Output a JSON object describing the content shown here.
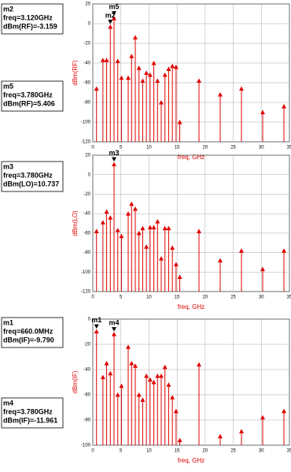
{
  "chart_data": [
    {
      "type": "stem",
      "xlabel": "freq, GHz",
      "ylabel": "dBm(RF)",
      "color": "#e00000",
      "grid": true,
      "x": [
        0.66,
        1.8,
        2.46,
        3.12,
        3.78,
        4.44,
        5.1,
        6.3,
        6.9,
        7.56,
        8.22,
        8.88,
        9.54,
        10.2,
        10.86,
        11.52,
        12.18,
        12.84,
        13.5,
        14.16,
        14.82,
        15.48,
        18.9,
        22.68,
        26.46,
        30.24,
        34.02
      ],
      "values": [
        -66,
        -37,
        -37,
        -3.159,
        5.406,
        -38,
        -55,
        -55,
        -33,
        -14,
        -45,
        -58,
        -50,
        -52,
        -40,
        -58,
        -80,
        -52,
        -46,
        -43,
        -44,
        -100,
        -58,
        -72,
        -66,
        -90,
        -84
      ],
      "xlim": [
        0,
        35
      ],
      "ylim": [
        -120,
        20
      ],
      "xticks": [
        0,
        5,
        10,
        15,
        20,
        25,
        30,
        35
      ],
      "yticks": [
        -120,
        -100,
        -80,
        -60,
        -40,
        -20,
        0,
        20
      ],
      "markers": [
        {
          "name": "m2",
          "freq": "freq=3.120GHz",
          "dbm": "dBm(RF)=-3.159",
          "x": 3.12,
          "y": -3.159
        },
        {
          "name": "m5",
          "freq": "freq=3.780GHz",
          "dbm": "dBm(RF)=5.406",
          "x": 3.78,
          "y": 5.406
        }
      ]
    },
    {
      "type": "stem",
      "xlabel": "freq, GHz",
      "ylabel": "dBm(LO)",
      "color": "#e00000",
      "grid": true,
      "x": [
        0.66,
        1.8,
        2.46,
        3.12,
        3.78,
        4.44,
        5.1,
        6.3,
        6.9,
        7.56,
        8.22,
        8.88,
        9.54,
        10.2,
        10.86,
        11.52,
        12.18,
        12.84,
        13.5,
        14.16,
        14.82,
        15.48,
        18.9,
        22.68,
        26.46,
        30.24,
        34.02
      ],
      "values": [
        -58,
        -49,
        -38,
        -44,
        10.737,
        -57,
        -63,
        -40,
        -30,
        -35,
        -60,
        -55,
        -74,
        -54,
        -54,
        -48,
        -86,
        -55,
        -55,
        -75,
        -92,
        -105,
        -58,
        -88,
        -78,
        -97,
        -78
      ],
      "xlim": [
        0,
        35
      ],
      "ylim": [
        -120,
        20
      ],
      "xticks": [
        0,
        5,
        10,
        15,
        20,
        25,
        30,
        35
      ],
      "yticks": [
        -120,
        -100,
        -80,
        -60,
        -40,
        -20,
        0,
        20
      ],
      "markers": [
        {
          "name": "m3",
          "freq": "freq=3.780GHz",
          "dbm": "dBm(LO)=10.737",
          "x": 3.78,
          "y": 10.737
        }
      ]
    },
    {
      "type": "stem",
      "xlabel": "freq, GHz",
      "ylabel": "dBm(IF)",
      "color": "#e00000",
      "grid": true,
      "x": [
        0.66,
        1.8,
        2.46,
        3.12,
        3.78,
        4.44,
        5.1,
        6.3,
        6.9,
        7.56,
        8.22,
        8.88,
        9.54,
        10.2,
        10.86,
        11.52,
        12.18,
        12.84,
        13.5,
        14.16,
        14.82,
        15.48,
        18.9,
        22.68,
        26.46,
        30.24,
        34.02
      ],
      "values": [
        -9.79,
        -46,
        -35,
        -43,
        -11.961,
        -60,
        -53,
        -22,
        -35,
        -37,
        -60,
        -64,
        -45,
        -48,
        -50,
        -45,
        -45,
        -38,
        -52,
        -62,
        -73,
        -96,
        -36,
        -93,
        -89,
        -78,
        -73
      ],
      "xlim": [
        0,
        35
      ],
      "ylim": [
        -100,
        0
      ],
      "xticks": [
        0,
        5,
        10,
        15,
        20,
        25,
        30,
        35
      ],
      "yticks": [
        -100,
        -80,
        -60,
        -40,
        -20,
        0
      ],
      "markers": [
        {
          "name": "m1",
          "freq": "freq=660.0MHz",
          "dbm": "dBm(IF)=-9.790",
          "x": 0.66,
          "y": -9.79
        },
        {
          "name": "m4",
          "freq": "freq=3.780GHz",
          "dbm": "dBm(IF)=-11.961",
          "x": 3.78,
          "y": -11.961
        }
      ]
    }
  ]
}
